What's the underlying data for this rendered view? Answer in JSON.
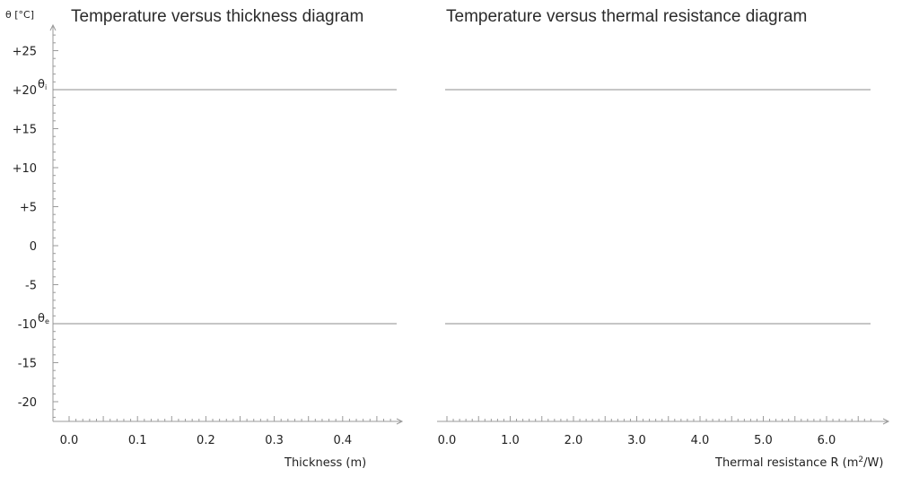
{
  "chart_data": [
    {
      "type": "line",
      "title": "Temperature versus thickness diagram",
      "xlabel": "Thickness (m)",
      "ylabel": "θ [°C]",
      "xlim": [
        -0.025,
        0.48
      ],
      "ylim": [
        -22.5,
        28.5
      ],
      "x_ticks": [
        "0.0",
        "0.1",
        "0.2",
        "0.3",
        "0.4"
      ],
      "x_tick_values": [
        0.0,
        0.1,
        0.2,
        0.3,
        0.4
      ],
      "y_ticks": [
        "+25",
        "+20",
        "+15",
        "+10",
        "+5",
        "0",
        "-5",
        "-10",
        "-15",
        "-20"
      ],
      "y_tick_values": [
        25,
        20,
        15,
        10,
        5,
        0,
        -5,
        -10,
        -15,
        -20
      ],
      "reference_lines": [
        {
          "symbol": "θ",
          "subscript": "i",
          "y": 20
        },
        {
          "symbol": "θ",
          "subscript": "e",
          "y": -10
        }
      ],
      "grid": false
    },
    {
      "type": "line",
      "title": "Temperature versus thermal resistance diagram",
      "xlabel": "Thermal resistance R (m",
      "xlabel_sup": "2",
      "xlabel_end": "/W)",
      "xlim": [
        -0.15,
        6.85
      ],
      "ylim": [
        -22.5,
        28.5
      ],
      "x_ticks": [
        "0.0",
        "1.0",
        "2.0",
        "3.0",
        "4.0",
        "5.0",
        "6.0"
      ],
      "x_tick_values": [
        0,
        1,
        2,
        3,
        4,
        5,
        6
      ],
      "reference_lines": [
        {
          "y": 20
        },
        {
          "y": -10
        }
      ],
      "grid": false
    }
  ],
  "colors": {
    "axis": "#9a9a9a",
    "reference_line": "#8c8c8c",
    "text": "#222222"
  }
}
